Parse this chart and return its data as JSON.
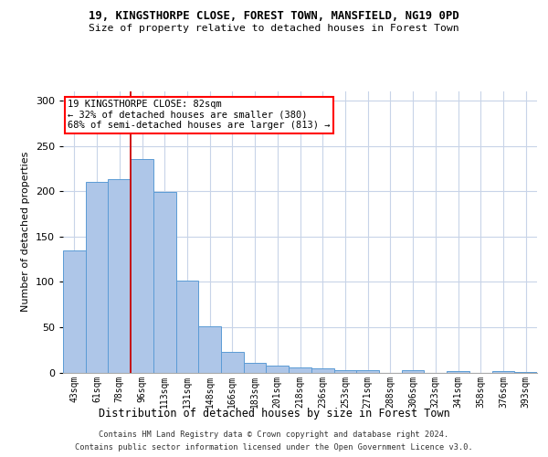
{
  "title1": "19, KINGSTHORPE CLOSE, FOREST TOWN, MANSFIELD, NG19 0PD",
  "title2": "Size of property relative to detached houses in Forest Town",
  "xlabel": "Distribution of detached houses by size in Forest Town",
  "ylabel": "Number of detached properties",
  "footer1": "Contains HM Land Registry data © Crown copyright and database right 2024.",
  "footer2": "Contains public sector information licensed under the Open Government Licence v3.0.",
  "annotation_line1": "19 KINGSTHORPE CLOSE: 82sqm",
  "annotation_line2": "← 32% of detached houses are smaller (380)",
  "annotation_line3": "68% of semi-detached houses are larger (813) →",
  "bar_color": "#aec6e8",
  "bar_edge_color": "#5b9bd5",
  "red_line_color": "#cc0000",
  "categories": [
    "43sqm",
    "61sqm",
    "78sqm",
    "96sqm",
    "113sqm",
    "131sqm",
    "148sqm",
    "166sqm",
    "183sqm",
    "201sqm",
    "218sqm",
    "236sqm",
    "253sqm",
    "271sqm",
    "288sqm",
    "306sqm",
    "323sqm",
    "341sqm",
    "358sqm",
    "376sqm",
    "393sqm"
  ],
  "values": [
    135,
    210,
    213,
    235,
    199,
    101,
    51,
    23,
    11,
    8,
    6,
    5,
    3,
    3,
    0,
    3,
    0,
    2,
    0,
    2,
    1
  ],
  "ylim": [
    0,
    310
  ],
  "yticks": [
    0,
    50,
    100,
    150,
    200,
    250,
    300
  ],
  "red_line_x": 2.5,
  "background_color": "#ffffff",
  "grid_color": "#c8d4e8"
}
